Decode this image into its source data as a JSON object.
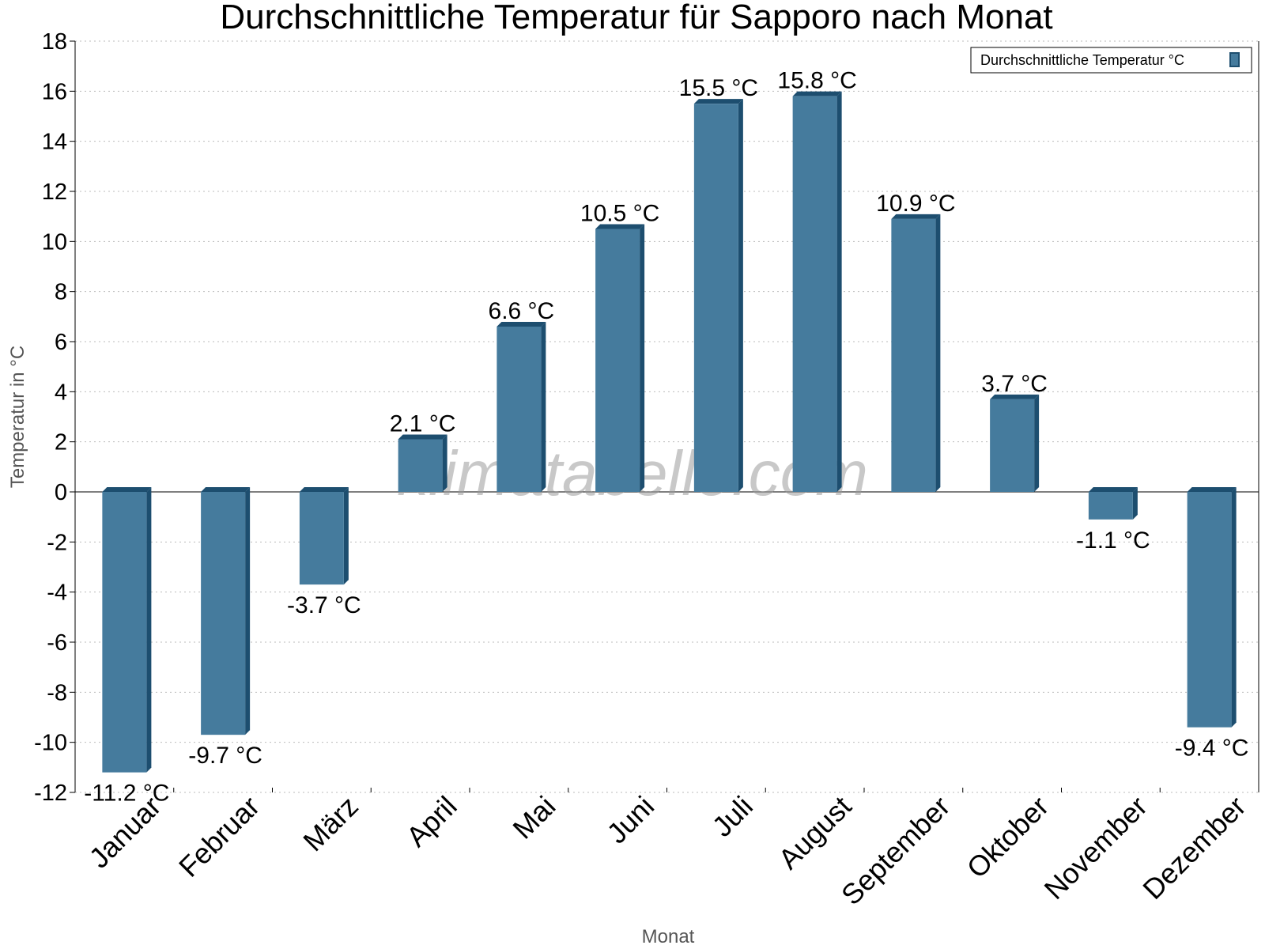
{
  "chart_data": {
    "type": "bar",
    "title": "Durchschnittliche Temperatur für Sapporo nach Monat",
    "xlabel": "Monat",
    "ylabel": "Temperatur in °C",
    "categories": [
      "Januar",
      "Februar",
      "März",
      "April",
      "Mai",
      "Juni",
      "Juli",
      "August",
      "September",
      "Oktober",
      "November",
      "Dezember"
    ],
    "series": [
      {
        "name": "Durchschnittliche Temperatur °C",
        "values": [
          -11.2,
          -9.7,
          -3.7,
          2.1,
          6.6,
          10.5,
          15.5,
          15.8,
          10.9,
          3.7,
          -1.1,
          -9.4
        ],
        "labels": [
          "-11.2 °C",
          "-9.7 °C",
          "-3.7 °C",
          "2.1 °C",
          "6.6 °C",
          "10.5 °C",
          "15.5 °C",
          "15.8 °C",
          "10.9 °C",
          "3.7 °C",
          "-1.1 °C",
          "-9.4 °C"
        ]
      }
    ],
    "ylim": [
      -12,
      18
    ],
    "yticks": [
      "18",
      "16",
      "14",
      "12",
      "10",
      "8",
      "6",
      "4",
      "2",
      "0",
      "-2",
      "-4",
      "-6",
      "-8",
      "-10",
      "-12"
    ],
    "grid": true,
    "legend_position": "top-right",
    "watermark": "klimatabelle.com",
    "colors": {
      "bar": "#457b9d",
      "bar_side": "#1d4e6f",
      "grid": "#bbbbbb",
      "text": "#000000",
      "axis_label": "#555555"
    }
  }
}
